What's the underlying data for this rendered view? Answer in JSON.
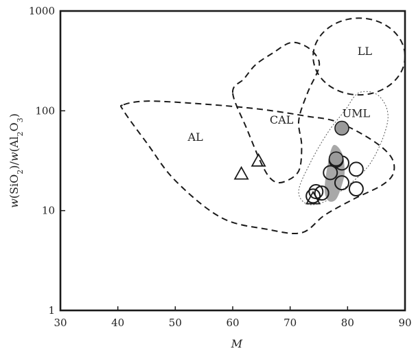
{
  "chart_data": {
    "type": "scatter",
    "xlabel": "M",
    "ylabel_parts": [
      "w(SiO",
      "2",
      ")/w(Al",
      "2",
      "O",
      "3",
      ")"
    ],
    "xlim": [
      30,
      90
    ],
    "ylim": [
      1,
      1000
    ],
    "y_scale": "log",
    "x_ticks": [
      30,
      40,
      50,
      60,
      70,
      80,
      90
    ],
    "y_ticks": [
      1,
      10,
      100,
      1000
    ],
    "y_tick_labels": [
      "1",
      "10",
      "100",
      "1000"
    ],
    "colors": {
      "open_marker": "#1a1a1a",
      "filled_marker": "#9a9a9a",
      "shaded_cluster": "#a8a8a8"
    },
    "regions": [
      {
        "label": "AL",
        "label_at": [
          53.5,
          55
        ],
        "style": "dashed",
        "outline": [
          [
            41,
            115
          ],
          [
            45,
            125
          ],
          [
            53,
            119
          ],
          [
            62,
            108
          ],
          [
            68,
            98
          ],
          [
            73,
            88
          ],
          [
            78,
            78
          ],
          [
            84,
            52
          ],
          [
            87.5,
            35
          ],
          [
            88,
            24
          ],
          [
            86,
            18
          ],
          [
            81,
            13
          ],
          [
            76,
            9
          ],
          [
            72,
            6
          ],
          [
            66,
            6.5
          ],
          [
            58,
            8.5
          ],
          [
            50,
            20
          ],
          [
            45,
            48
          ],
          [
            41,
            100
          ],
          [
            41,
            115
          ]
        ]
      },
      {
        "label": "CAL",
        "label_at": [
          68.5,
          82
        ],
        "style": "dashed",
        "outline": [
          [
            60,
            152
          ],
          [
            62,
            210
          ],
          [
            64,
            290
          ],
          [
            67,
            380
          ],
          [
            70,
            480
          ],
          [
            72.5,
            450
          ],
          [
            74.5,
            360
          ],
          [
            75,
            270
          ],
          [
            73,
            150
          ],
          [
            71.5,
            80
          ],
          [
            72,
            45
          ],
          [
            71.5,
            25
          ],
          [
            69,
            19.5
          ],
          [
            67,
            20
          ],
          [
            65.2,
            28
          ],
          [
            62.5,
            65
          ],
          [
            60,
            152
          ]
        ]
      },
      {
        "label": "LL",
        "label_at": [
          83,
          400
        ],
        "style": "dashed",
        "ellipse": {
          "cx": 82,
          "cy": 350,
          "rx": 8,
          "ry_up": 2.45,
          "ry_down": 2.4
        }
      },
      {
        "label": "UML",
        "label_at": [
          81.5,
          95
        ],
        "style": "dotted",
        "outline": [
          [
            79.5,
            100
          ],
          [
            82,
            152
          ],
          [
            85.5,
            140
          ],
          [
            87,
            80
          ],
          [
            84,
            30
          ],
          [
            79,
            16
          ],
          [
            75.5,
            12
          ],
          [
            72.7,
            11.8
          ],
          [
            71.5,
            16
          ],
          [
            73.5,
            30
          ],
          [
            76.5,
            60
          ],
          [
            79.5,
            100
          ]
        ]
      }
    ],
    "shaded_cluster": [
      [
        77.5,
        45
      ],
      [
        79,
        38
      ],
      [
        79.5,
        25
      ],
      [
        79,
        18
      ],
      [
        78,
        13
      ],
      [
        76.7,
        12.5
      ],
      [
        76,
        16
      ],
      [
        76.5,
        28
      ],
      [
        77.5,
        45
      ]
    ],
    "series": [
      {
        "marker": "triangle",
        "points": [
          [
            61.5,
            23
          ],
          [
            64.5,
            31
          ],
          [
            74,
            13
          ]
        ]
      },
      {
        "marker": "open-circle",
        "points": [
          [
            74.5,
            15.5
          ],
          [
            75.5,
            15
          ],
          [
            77,
            24
          ],
          [
            78,
            32
          ],
          [
            79,
            30
          ],
          [
            79,
            19
          ],
          [
            81.5,
            26
          ],
          [
            81.5,
            16.5
          ],
          [
            74,
            14
          ]
        ]
      },
      {
        "marker": "filled-circle",
        "points": [
          [
            79,
            67
          ],
          [
            78,
            33
          ]
        ]
      }
    ]
  }
}
